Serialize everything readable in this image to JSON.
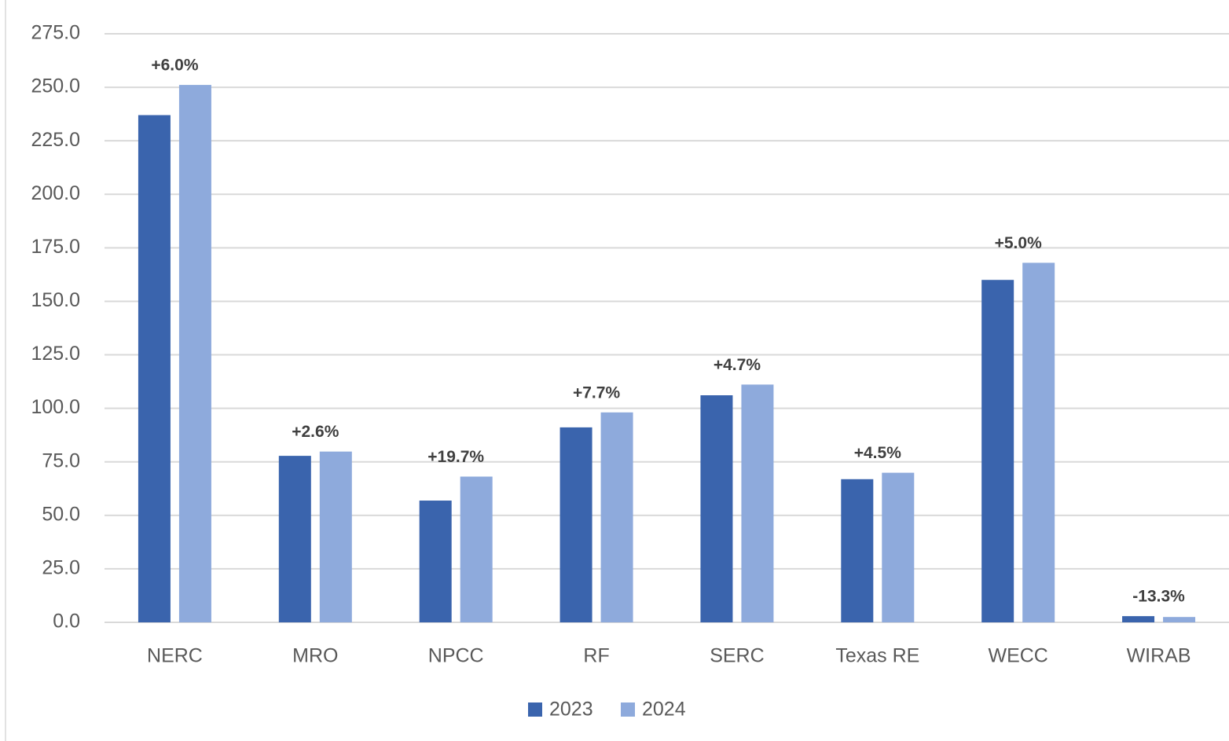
{
  "chart_data": {
    "type": "bar",
    "categories": [
      "NERC",
      "MRO",
      "NPCC",
      "RF",
      "SERC",
      "Texas RE",
      "WECC",
      "WIRAB"
    ],
    "series": [
      {
        "name": "2023",
        "color": "#3a64ad",
        "values": [
          237,
          77.8,
          56.9,
          91.1,
          106.1,
          66.9,
          160,
          2.9
        ]
      },
      {
        "name": "2024",
        "color": "#8eaadc",
        "values": [
          251.1,
          79.8,
          68.1,
          98.1,
          111.1,
          69.9,
          168,
          2.5
        ]
      }
    ],
    "annotations": [
      "+6.0%",
      "+2.6%",
      "+19.7%",
      "+7.7%",
      "+4.7%",
      "+4.5%",
      "+5.0%",
      "-13.3%"
    ],
    "ylim": [
      0,
      275
    ],
    "yticks": [
      {
        "value": 0,
        "label": "0.0"
      },
      {
        "value": 25,
        "label": "25.0"
      },
      {
        "value": 50,
        "label": "50.0"
      },
      {
        "value": 75,
        "label": "75.0"
      },
      {
        "value": 100,
        "label": "100.0"
      },
      {
        "value": 125,
        "label": "125.0"
      },
      {
        "value": 150,
        "label": "150.0"
      },
      {
        "value": 175,
        "label": "175.0"
      },
      {
        "value": 200,
        "label": "200.0"
      },
      {
        "value": 225,
        "label": "225.0"
      },
      {
        "value": 250,
        "label": "250.0"
      },
      {
        "value": 275,
        "label": "275.0"
      }
    ],
    "grid": true,
    "legend": "bottom"
  }
}
